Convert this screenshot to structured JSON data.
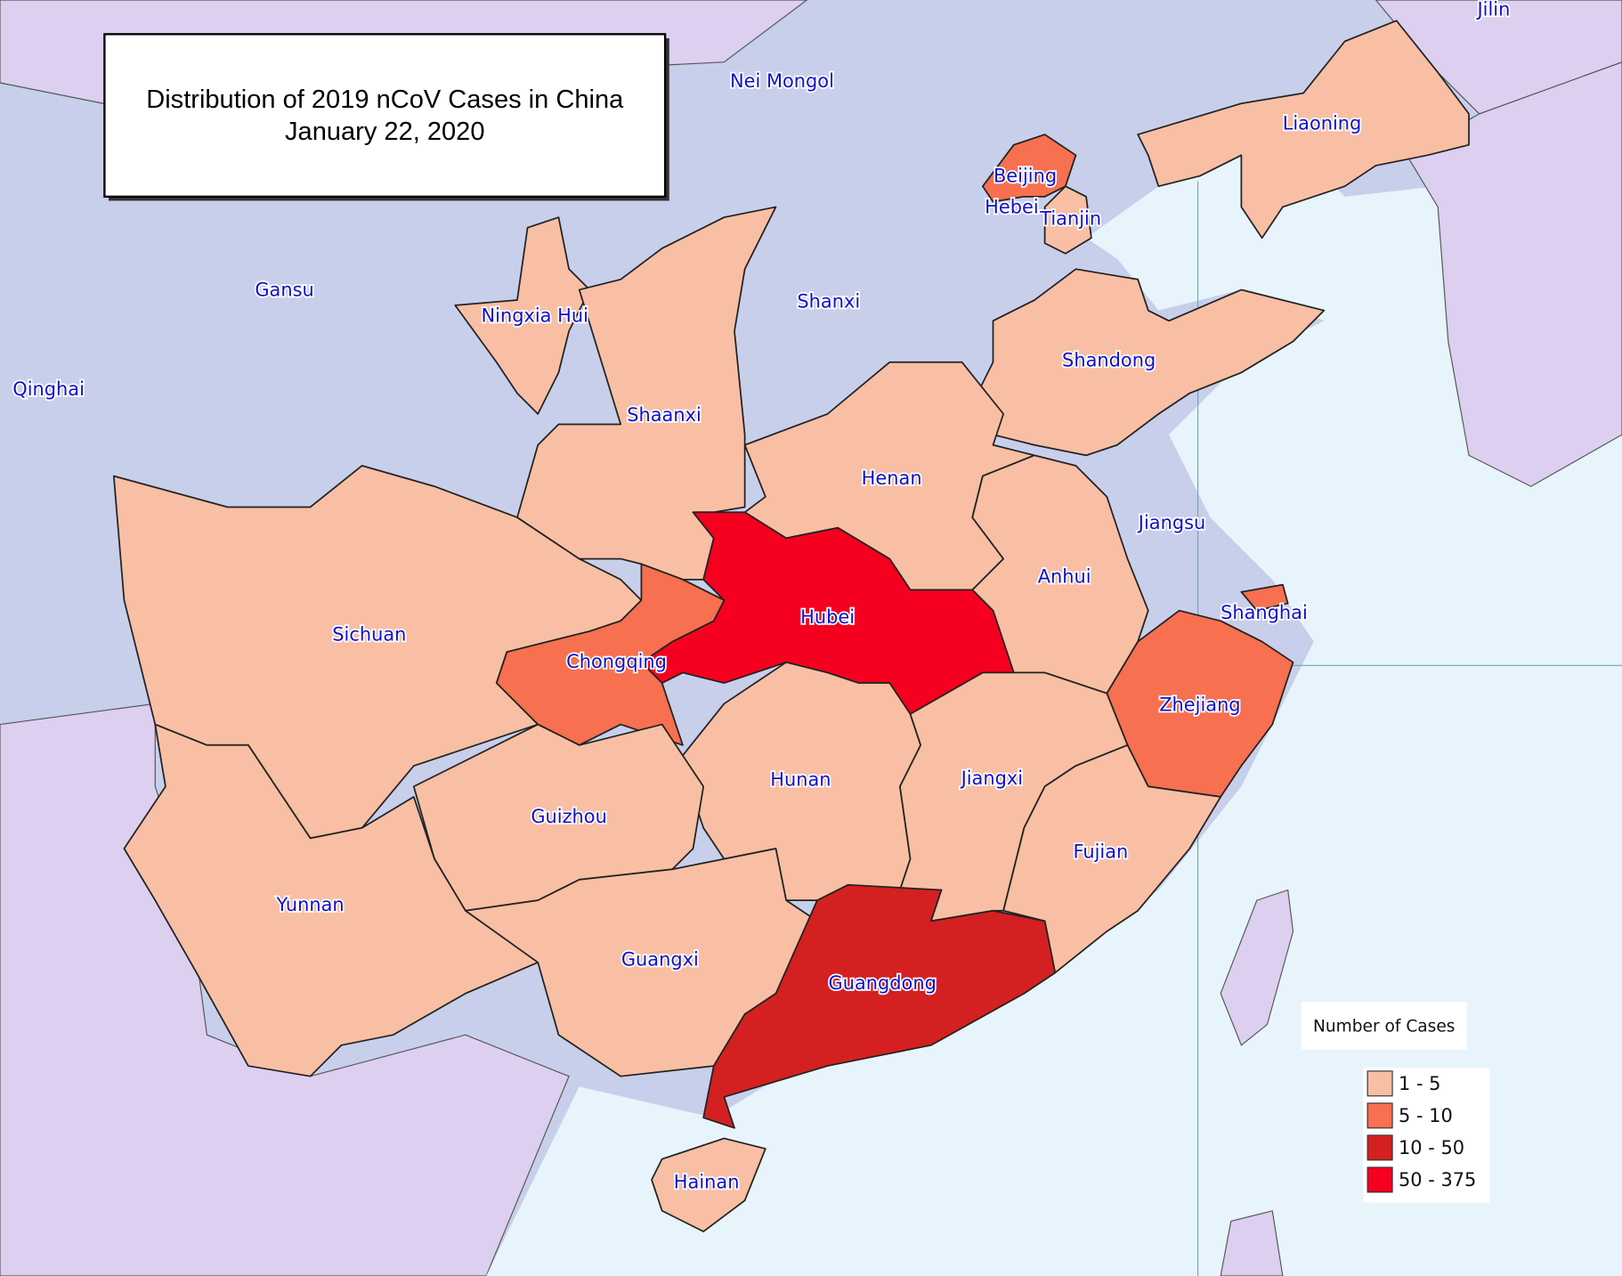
{
  "title": {
    "line1": "Distribution of 2019 nCoV Cases in China",
    "line2": "January 22, 2020"
  },
  "provinces": [
    {
      "name": "Jilin"
    },
    {
      "name": "Nei Mongol"
    },
    {
      "name": "Liaoning",
      "color": "#f8bfa4"
    },
    {
      "name": "Beijing",
      "color": "#f7704f"
    },
    {
      "name": "Hebei"
    },
    {
      "name": "Tianjin",
      "color": "#f8bfa4"
    },
    {
      "name": "Gansu"
    },
    {
      "name": "Ningxia Hui",
      "color": "#f8bfa4"
    },
    {
      "name": "Shanxi"
    },
    {
      "name": "Shandong",
      "color": "#f8bfa4"
    },
    {
      "name": "Qinghai"
    },
    {
      "name": "Shaanxi",
      "color": "#f8bfa4"
    },
    {
      "name": "Henan",
      "color": "#f8bfa4"
    },
    {
      "name": "Jiangsu"
    },
    {
      "name": "Anhui",
      "color": "#f8bfa4"
    },
    {
      "name": "Hubei",
      "color": "#f5001e"
    },
    {
      "name": "Shanghai",
      "color": "#f7704f"
    },
    {
      "name": "Sichuan",
      "color": "#f8bfa4"
    },
    {
      "name": "Chongqing",
      "color": "#f7704f"
    },
    {
      "name": "Zhejiang",
      "color": "#f7704f"
    },
    {
      "name": "Hunan",
      "color": "#f8bfa4"
    },
    {
      "name": "Jiangxi",
      "color": "#f8bfa4"
    },
    {
      "name": "Guizhou",
      "color": "#f8bfa4"
    },
    {
      "name": "Fujian",
      "color": "#f8bfa4"
    },
    {
      "name": "Yunnan",
      "color": "#f8bfa4"
    },
    {
      "name": "Guangxi",
      "color": "#f8bfa4"
    },
    {
      "name": "Guangdong",
      "color": "#d42020"
    },
    {
      "name": "Hainan",
      "color": "#f8bfa4"
    }
  ],
  "legend": {
    "title": "Number of Cases",
    "items": [
      {
        "label": "1 - 5",
        "color": "#f8bfa4"
      },
      {
        "label": "5 - 10",
        "color": "#f7704f"
      },
      {
        "label": "10 - 50",
        "color": "#d42020"
      },
      {
        "label": "50 - 375",
        "color": "#f5001e"
      }
    ]
  }
}
